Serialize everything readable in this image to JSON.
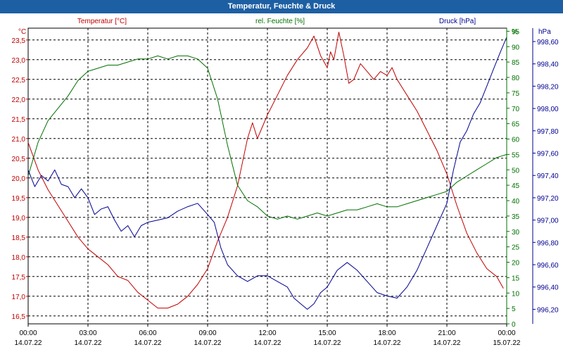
{
  "window": {
    "title": "Temperatur, Feuchte & Druck"
  },
  "chart_data": {
    "type": "line",
    "title": "Temperatur, Feuchte & Druck",
    "grid": true,
    "legend": "top",
    "x": {
      "ticks": [
        "00:00",
        "03:00",
        "06:00",
        "09:00",
        "12:00",
        "15:00",
        "18:00",
        "21:00",
        "00:00"
      ],
      "dates": [
        "14.07.22",
        "14.07.22",
        "14.07.22",
        "14.07.22",
        "14.07.22",
        "14.07.22",
        "14.07.22",
        "14.07.22",
        "15.07.22"
      ],
      "range": [
        "14.07.22 00:00",
        "15.07.22 00:00"
      ]
    },
    "axes": {
      "temperature": {
        "unit": "°C",
        "ticks": [
          "16,5",
          "17,0",
          "17,5",
          "18,0",
          "18,5",
          "19,0",
          "19,5",
          "20,0",
          "20,5",
          "21,0",
          "21,5",
          "22,0",
          "22,5",
          "23,0",
          "23,5"
        ],
        "ylim": [
          16.3,
          23.8
        ]
      },
      "humidity": {
        "unit": "%",
        "ticks": [
          "0",
          "5",
          "10",
          "15",
          "20",
          "25",
          "30",
          "35",
          "40",
          "45",
          "50",
          "55",
          "60",
          "65",
          "70",
          "75",
          "80",
          "85",
          "90",
          "95"
        ],
        "ylim": [
          0,
          96
        ]
      },
      "pressure": {
        "unit": "hPa",
        "ticks": [
          "996,20",
          "996,40",
          "996,60",
          "996,80",
          "997,00",
          "997,20",
          "997,40",
          "997,60",
          "997,80",
          "998,00",
          "998,20",
          "998,40",
          "998,60"
        ],
        "ylim": [
          996.07,
          998.72
        ]
      }
    },
    "series": [
      {
        "name": "Temperatur [°C]",
        "axis": "temperature",
        "color": "#c00000",
        "points": [
          [
            "00:00",
            20.9
          ],
          [
            "00:30",
            20.2
          ],
          [
            "01:00",
            19.7
          ],
          [
            "01:30",
            19.3
          ],
          [
            "02:00",
            18.9
          ],
          [
            "02:30",
            18.5
          ],
          [
            "03:00",
            18.2
          ],
          [
            "03:30",
            18.0
          ],
          [
            "04:00",
            17.8
          ],
          [
            "04:30",
            17.5
          ],
          [
            "05:00",
            17.4
          ],
          [
            "05:30",
            17.1
          ],
          [
            "06:00",
            16.9
          ],
          [
            "06:30",
            16.7
          ],
          [
            "07:00",
            16.7
          ],
          [
            "07:30",
            16.8
          ],
          [
            "08:00",
            17.0
          ],
          [
            "08:30",
            17.3
          ],
          [
            "09:00",
            17.7
          ],
          [
            "09:30",
            18.4
          ],
          [
            "10:00",
            19.0
          ],
          [
            "10:30",
            19.8
          ],
          [
            "11:00",
            21.0
          ],
          [
            "11:15",
            21.4
          ],
          [
            "11:30",
            21.0
          ],
          [
            "11:45",
            21.3
          ],
          [
            "12:00",
            21.6
          ],
          [
            "12:30",
            22.1
          ],
          [
            "13:00",
            22.6
          ],
          [
            "13:30",
            23.0
          ],
          [
            "14:00",
            23.3
          ],
          [
            "14:20",
            23.6
          ],
          [
            "14:40",
            23.1
          ],
          [
            "15:00",
            22.8
          ],
          [
            "15:10",
            23.2
          ],
          [
            "15:20",
            23.0
          ],
          [
            "15:35",
            23.7
          ],
          [
            "15:50",
            23.1
          ],
          [
            "16:05",
            22.4
          ],
          [
            "16:20",
            22.5
          ],
          [
            "16:40",
            22.9
          ],
          [
            "17:00",
            22.7
          ],
          [
            "17:20",
            22.5
          ],
          [
            "17:40",
            22.7
          ],
          [
            "18:00",
            22.6
          ],
          [
            "18:15",
            22.8
          ],
          [
            "18:30",
            22.5
          ],
          [
            "19:00",
            22.1
          ],
          [
            "19:30",
            21.7
          ],
          [
            "20:00",
            21.2
          ],
          [
            "20:30",
            20.7
          ],
          [
            "21:00",
            20.1
          ],
          [
            "21:30",
            19.3
          ],
          [
            "22:00",
            18.6
          ],
          [
            "22:30",
            18.1
          ],
          [
            "23:00",
            17.7
          ],
          [
            "23:30",
            17.5
          ],
          [
            "23:50",
            17.2
          ]
        ]
      },
      {
        "name": "rel. Feuchte [%]",
        "axis": "humidity",
        "color": "#007000",
        "points": [
          [
            "00:00",
            48
          ],
          [
            "00:30",
            59
          ],
          [
            "01:00",
            66
          ],
          [
            "01:30",
            70
          ],
          [
            "02:00",
            74
          ],
          [
            "02:30",
            79
          ],
          [
            "03:00",
            82
          ],
          [
            "03:30",
            83
          ],
          [
            "04:00",
            84
          ],
          [
            "04:30",
            84
          ],
          [
            "05:00",
            85
          ],
          [
            "05:30",
            86
          ],
          [
            "06:00",
            86
          ],
          [
            "06:30",
            87
          ],
          [
            "07:00",
            86
          ],
          [
            "07:30",
            87
          ],
          [
            "08:00",
            87
          ],
          [
            "08:30",
            86
          ],
          [
            "09:00",
            83
          ],
          [
            "09:30",
            73
          ],
          [
            "10:00",
            58
          ],
          [
            "10:30",
            45
          ],
          [
            "11:00",
            40
          ],
          [
            "11:30",
            38
          ],
          [
            "12:00",
            35
          ],
          [
            "12:30",
            34
          ],
          [
            "13:00",
            35
          ],
          [
            "13:30",
            34
          ],
          [
            "14:00",
            35
          ],
          [
            "14:30",
            36
          ],
          [
            "15:00",
            35
          ],
          [
            "15:30",
            36
          ],
          [
            "16:00",
            37
          ],
          [
            "16:30",
            37
          ],
          [
            "17:00",
            38
          ],
          [
            "17:30",
            39
          ],
          [
            "18:00",
            38
          ],
          [
            "18:30",
            38
          ],
          [
            "19:00",
            39
          ],
          [
            "19:30",
            40
          ],
          [
            "20:00",
            41
          ],
          [
            "20:30",
            42
          ],
          [
            "21:00",
            43
          ],
          [
            "21:30",
            46
          ],
          [
            "22:00",
            48
          ],
          [
            "22:30",
            50
          ],
          [
            "23:00",
            52
          ],
          [
            "23:30",
            54
          ],
          [
            "24:00",
            55
          ]
        ]
      },
      {
        "name": "Druck [hPa]",
        "axis": "pressure",
        "color": "#000090",
        "points": [
          [
            "00:00",
            997.45
          ],
          [
            "00:20",
            997.3
          ],
          [
            "00:40",
            997.4
          ],
          [
            "01:00",
            997.35
          ],
          [
            "01:20",
            997.45
          ],
          [
            "01:40",
            997.32
          ],
          [
            "02:00",
            997.3
          ],
          [
            "02:20",
            997.2
          ],
          [
            "02:40",
            997.28
          ],
          [
            "03:00",
            997.2
          ],
          [
            "03:20",
            997.05
          ],
          [
            "03:40",
            997.1
          ],
          [
            "04:00",
            997.12
          ],
          [
            "04:20",
            997.0
          ],
          [
            "04:40",
            996.9
          ],
          [
            "05:00",
            996.95
          ],
          [
            "05:20",
            996.85
          ],
          [
            "05:40",
            996.95
          ],
          [
            "06:00",
            996.98
          ],
          [
            "06:30",
            997.0
          ],
          [
            "07:00",
            997.02
          ],
          [
            "07:30",
            997.08
          ],
          [
            "08:00",
            997.12
          ],
          [
            "08:30",
            997.15
          ],
          [
            "09:00",
            997.05
          ],
          [
            "09:20",
            996.98
          ],
          [
            "09:40",
            996.75
          ],
          [
            "10:00",
            996.6
          ],
          [
            "10:30",
            996.5
          ],
          [
            "11:00",
            996.45
          ],
          [
            "11:30",
            996.5
          ],
          [
            "12:00",
            996.5
          ],
          [
            "12:30",
            996.45
          ],
          [
            "13:00",
            996.4
          ],
          [
            "13:20",
            996.3
          ],
          [
            "13:40",
            996.25
          ],
          [
            "14:00",
            996.2
          ],
          [
            "14:20",
            996.25
          ],
          [
            "14:40",
            996.35
          ],
          [
            "15:00",
            996.4
          ],
          [
            "15:30",
            996.55
          ],
          [
            "16:00",
            996.62
          ],
          [
            "16:30",
            996.55
          ],
          [
            "17:00",
            996.45
          ],
          [
            "17:30",
            996.35
          ],
          [
            "18:00",
            996.32
          ],
          [
            "18:30",
            996.3
          ],
          [
            "19:00",
            996.4
          ],
          [
            "19:30",
            996.55
          ],
          [
            "20:00",
            996.75
          ],
          [
            "20:30",
            996.95
          ],
          [
            "21:00",
            997.15
          ],
          [
            "21:20",
            997.45
          ],
          [
            "21:40",
            997.7
          ],
          [
            "22:00",
            997.8
          ],
          [
            "22:20",
            997.95
          ],
          [
            "22:40",
            998.05
          ],
          [
            "23:00",
            998.2
          ],
          [
            "23:20",
            998.35
          ],
          [
            "23:40",
            998.5
          ],
          [
            "24:00",
            998.64
          ]
        ]
      }
    ]
  }
}
